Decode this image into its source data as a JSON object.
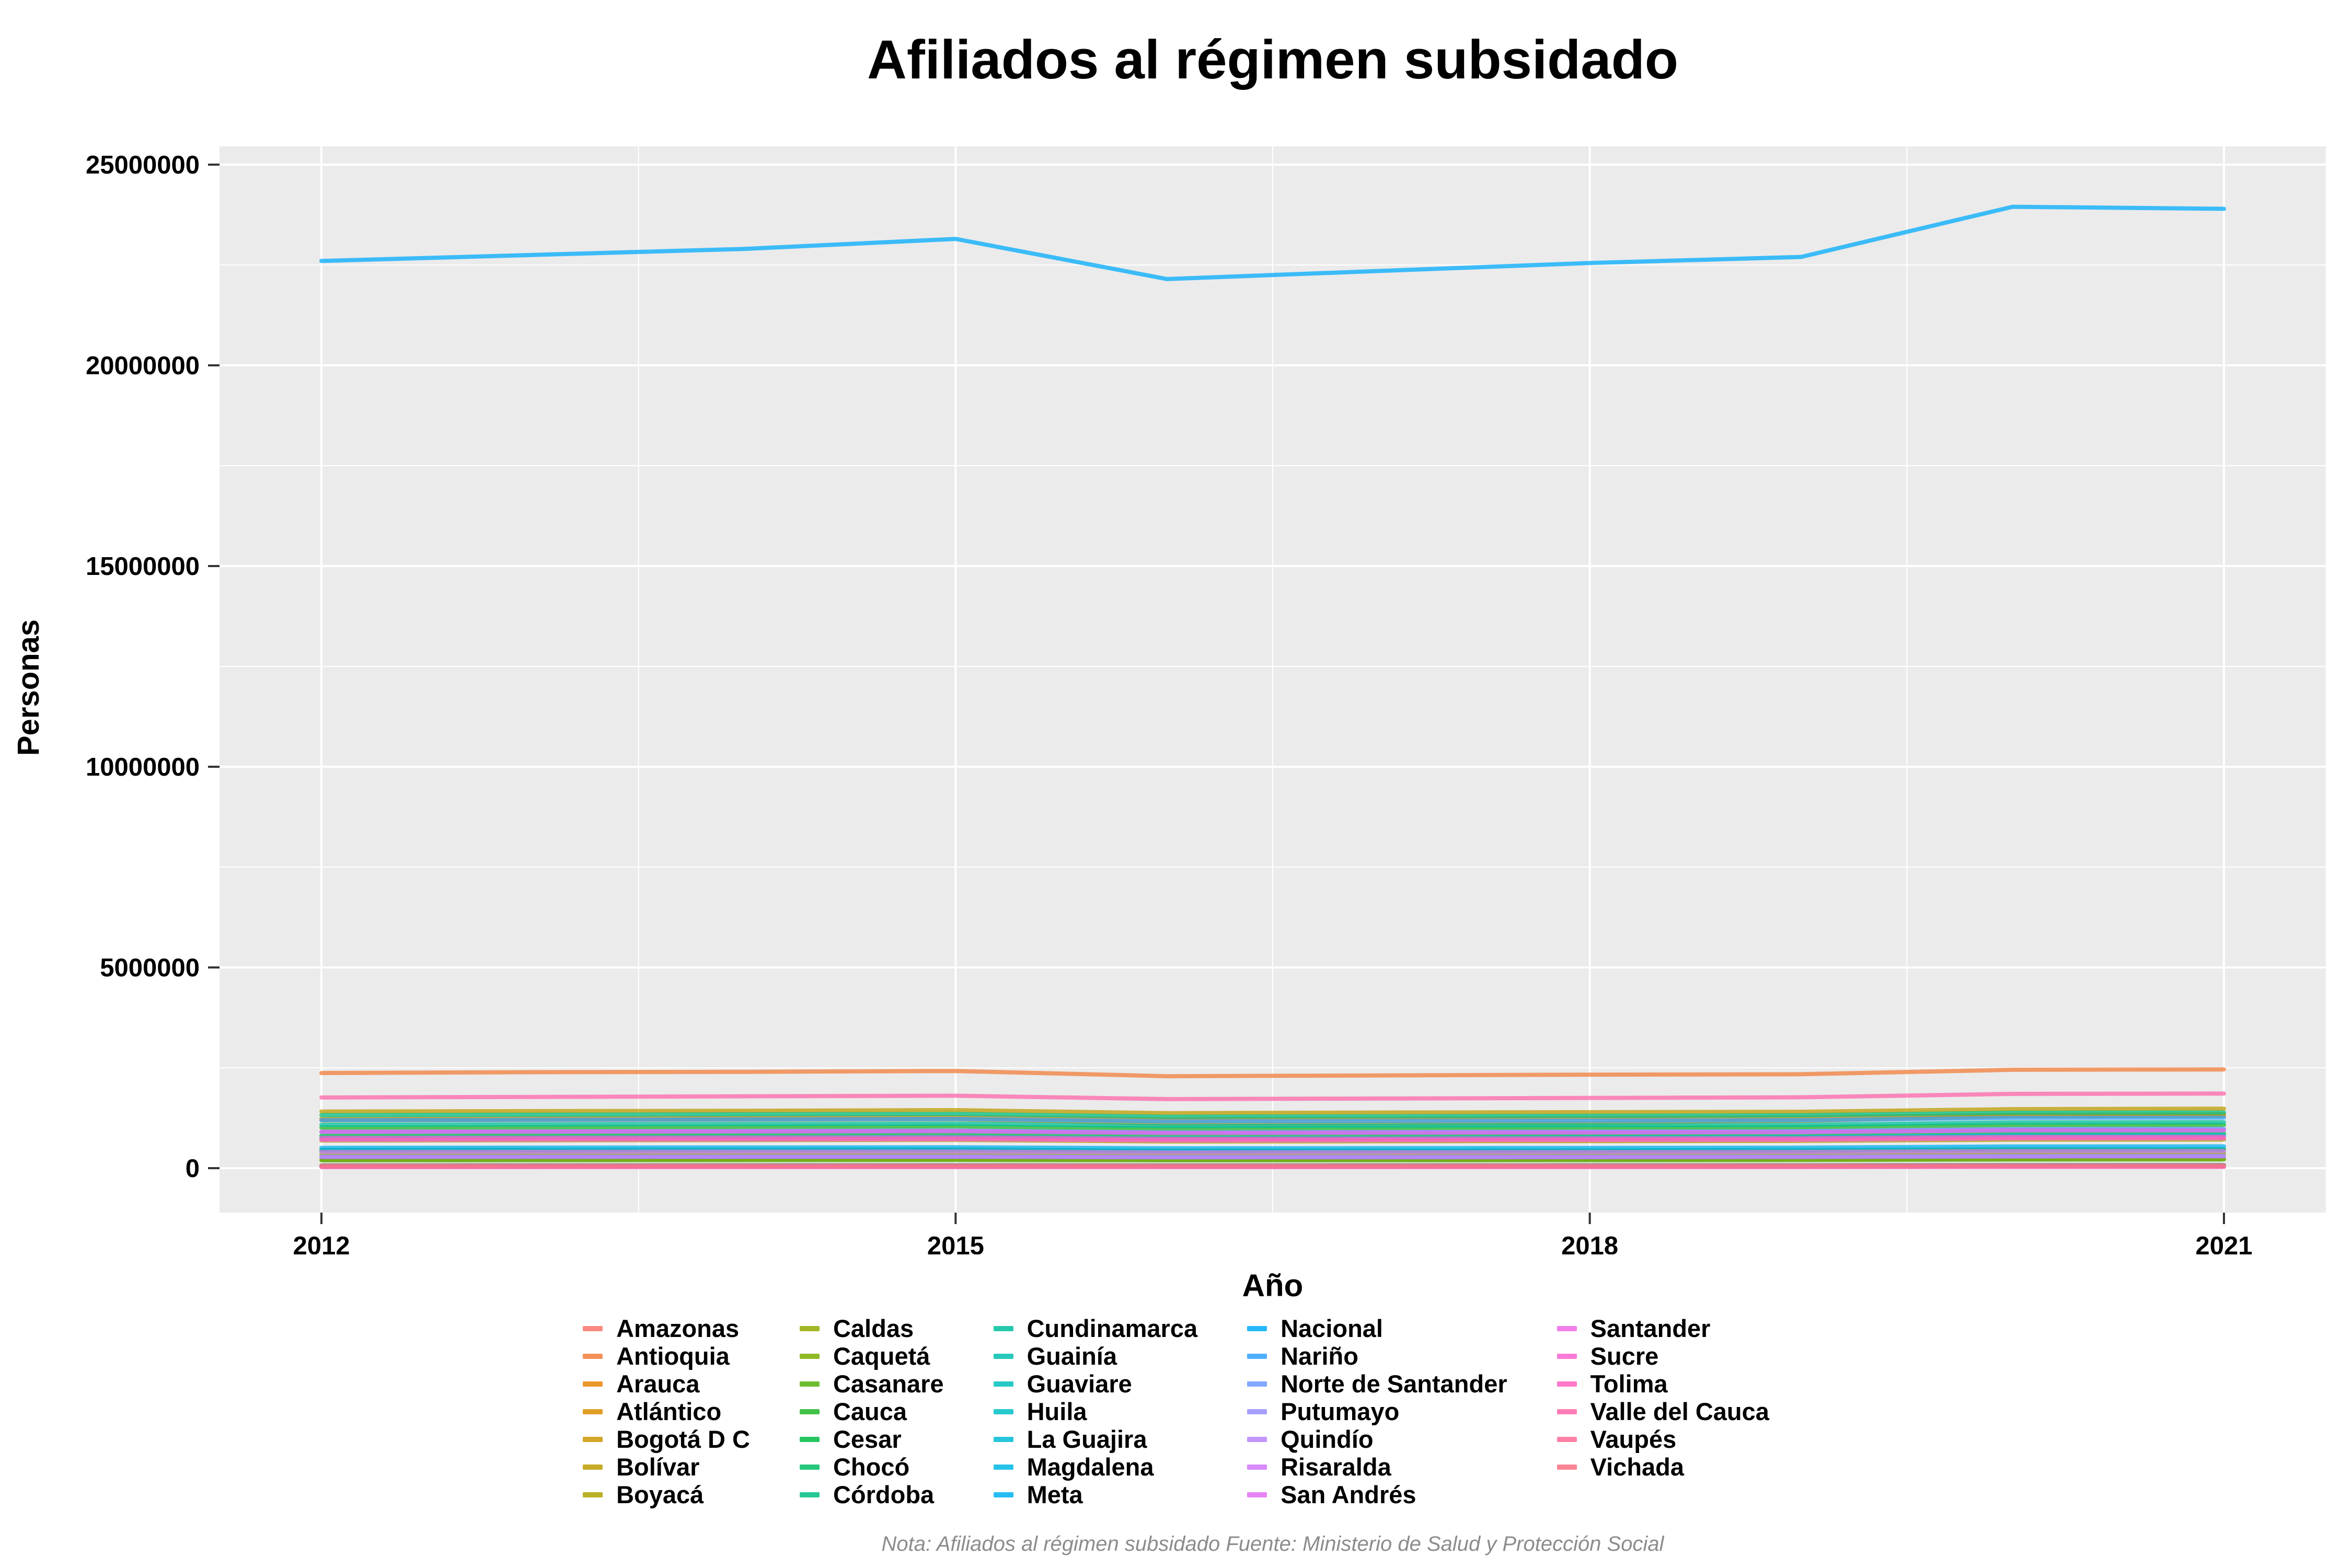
{
  "title": "Afiliados al régimen subsidado",
  "xlabel": "Año",
  "ylabel": "Personas",
  "note": "Nota: Afiliados al régimen subsidado Fuente: Ministerio de Salud y Protección Social",
  "colors": {
    "panel_bg": "#EBEBEB",
    "grid": "#FFFFFF",
    "axis_text": "#000000",
    "tick_mark": "#333333",
    "note_text": "#8C8C8C"
  },
  "chart_data": {
    "type": "line",
    "x": [
      2012,
      2013,
      2014,
      2015,
      2016,
      2017,
      2018,
      2019,
      2020,
      2021
    ],
    "x_ticks": [
      2012,
      2015,
      2018,
      2021
    ],
    "x_minor_ticks": [
      2013.5,
      2016.5,
      2019.5
    ],
    "y_ticks": [
      0,
      5000000,
      10000000,
      15000000,
      20000000,
      25000000
    ],
    "y_minor_ticks": [
      2500000,
      7500000,
      12500000,
      17500000,
      22500000
    ],
    "ylim": [
      0,
      25000000
    ],
    "grid": true,
    "legend_position": "bottom",
    "legend_columns": 5,
    "line_opacity": 0.75,
    "series": [
      {
        "name": "Amazonas",
        "color": "#F8766D",
        "values": [
          62000,
          63000,
          64000,
          65000,
          64000,
          64000,
          65000,
          66000,
          69000,
          70000
        ]
      },
      {
        "name": "Antioquia",
        "color": "#F27E3A",
        "values": [
          2370000,
          2390000,
          2400000,
          2420000,
          2290000,
          2310000,
          2330000,
          2340000,
          2450000,
          2460000
        ]
      },
      {
        "name": "Arauca",
        "color": "#E68605",
        "values": [
          210000,
          213000,
          215000,
          218000,
          210000,
          212000,
          214000,
          216000,
          225000,
          227000
        ]
      },
      {
        "name": "Atlántico",
        "color": "#D98E00",
        "values": [
          1230000,
          1245000,
          1260000,
          1275000,
          1215000,
          1230000,
          1245000,
          1260000,
          1330000,
          1340000
        ]
      },
      {
        "name": "Bogotá D C",
        "color": "#CC9700",
        "values": [
          1190000,
          1200000,
          1210000,
          1220000,
          1105000,
          1115000,
          1125000,
          1180000,
          1290000,
          1300000
        ]
      },
      {
        "name": "Bolívar",
        "color": "#BC9C00",
        "values": [
          1410000,
          1420000,
          1430000,
          1445000,
          1370000,
          1385000,
          1395000,
          1405000,
          1470000,
          1480000
        ]
      },
      {
        "name": "Boyacá",
        "color": "#ABA300",
        "values": [
          690000,
          695000,
          700000,
          705000,
          665000,
          670000,
          675000,
          680000,
          710000,
          712000
        ]
      },
      {
        "name": "Caldas",
        "color": "#93A900",
        "values": [
          455000,
          458000,
          462000,
          465000,
          440000,
          444000,
          448000,
          452000,
          470000,
          472000
        ]
      },
      {
        "name": "Caquetá",
        "color": "#7DAD00",
        "values": [
          340000,
          344000,
          348000,
          352000,
          335000,
          338000,
          342000,
          346000,
          365000,
          368000
        ]
      },
      {
        "name": "Casanare",
        "color": "#51B30D",
        "values": [
          195000,
          198000,
          200000,
          203000,
          195000,
          197000,
          199000,
          202000,
          215000,
          217000
        ]
      },
      {
        "name": "Cauca",
        "color": "#1FB728",
        "values": [
          1010000,
          1020000,
          1030000,
          1040000,
          990000,
          1000000,
          1010000,
          1020000,
          1070000,
          1075000
        ]
      },
      {
        "name": "Cesar",
        "color": "#00BB44",
        "values": [
          810000,
          818000,
          826000,
          834000,
          795000,
          803000,
          811000,
          819000,
          860000,
          865000
        ]
      },
      {
        "name": "Chocó",
        "color": "#00BD65",
        "values": [
          445000,
          448000,
          452000,
          455000,
          430000,
          434000,
          438000,
          442000,
          465000,
          467000
        ]
      },
      {
        "name": "Córdoba",
        "color": "#00BF83",
        "values": [
          1320000,
          1330000,
          1340000,
          1350000,
          1280000,
          1292000,
          1304000,
          1316000,
          1380000,
          1385000
        ]
      },
      {
        "name": "Cundinamarca",
        "color": "#00C09C",
        "values": [
          1080000,
          1090000,
          1100000,
          1110000,
          1050000,
          1060000,
          1070000,
          1080000,
          1140000,
          1145000
        ]
      },
      {
        "name": "Guainía",
        "color": "#00C0B0",
        "values": [
          36000,
          37000,
          37000,
          38000,
          36000,
          37000,
          37000,
          38000,
          41000,
          41000
        ]
      },
      {
        "name": "Guaviare",
        "color": "#00C0BA",
        "values": [
          72000,
          73000,
          74000,
          75000,
          72000,
          73000,
          74000,
          75000,
          80000,
          81000
        ]
      },
      {
        "name": "Huila",
        "color": "#00BFC4",
        "values": [
          760000,
          766000,
          772000,
          778000,
          740000,
          746000,
          752000,
          758000,
          795000,
          798000
        ]
      },
      {
        "name": "La Guajira",
        "color": "#00BCD4",
        "values": [
          745000,
          755000,
          765000,
          775000,
          740000,
          750000,
          760000,
          770000,
          815000,
          820000
        ]
      },
      {
        "name": "Magdalena",
        "color": "#00B8E5",
        "values": [
          905000,
          912000,
          919000,
          926000,
          880000,
          888000,
          896000,
          904000,
          950000,
          955000
        ]
      },
      {
        "name": "Meta",
        "color": "#00B2F1",
        "values": [
          505000,
          510000,
          515000,
          520000,
          495000,
          500000,
          505000,
          510000,
          540000,
          542000
        ]
      },
      {
        "name": "Nacional",
        "color": "#00ABFC",
        "values": [
          22600000,
          22750000,
          22900000,
          23150000,
          22150000,
          22350000,
          22550000,
          22700000,
          23950000,
          23900000
        ]
      },
      {
        "name": "Nariño",
        "color": "#30A1FF",
        "values": [
          1195000,
          1205000,
          1215000,
          1225000,
          1165000,
          1175000,
          1185000,
          1195000,
          1255000,
          1260000
        ]
      },
      {
        "name": "Norte de Santander",
        "color": "#6C98FF",
        "values": [
          905000,
          915000,
          925000,
          935000,
          890000,
          900000,
          910000,
          920000,
          975000,
          980000
        ]
      },
      {
        "name": "Putumayo",
        "color": "#988DFF",
        "values": [
          282000,
          285000,
          288000,
          291000,
          276000,
          279000,
          282000,
          285000,
          300000,
          302000
        ]
      },
      {
        "name": "Quindío",
        "color": "#B782FF",
        "values": [
          278000,
          280000,
          282000,
          284000,
          268000,
          271000,
          274000,
          277000,
          292000,
          294000
        ]
      },
      {
        "name": "Risaralda",
        "color": "#D077FB",
        "values": [
          405000,
          408000,
          411000,
          414000,
          392000,
          396000,
          400000,
          404000,
          425000,
          427000
        ]
      },
      {
        "name": "San Andrés",
        "color": "#E26EF2",
        "values": [
          29000,
          29000,
          30000,
          30000,
          29000,
          29000,
          30000,
          30000,
          32000,
          32000
        ]
      },
      {
        "name": "Santander",
        "color": "#F067E6",
        "values": [
          905000,
          910000,
          915000,
          920000,
          875000,
          882000,
          889000,
          896000,
          940000,
          943000
        ]
      },
      {
        "name": "Sucre",
        "color": "#F963D2",
        "values": [
          705000,
          710000,
          715000,
          720000,
          690000,
          695000,
          700000,
          705000,
          740000,
          742000
        ]
      },
      {
        "name": "Tolima",
        "color": "#FF62BE",
        "values": [
          752000,
          757000,
          762000,
          767000,
          730000,
          736000,
          742000,
          748000,
          780000,
          783000
        ]
      },
      {
        "name": "Valle del Cauca",
        "color": "#FF66AA",
        "values": [
          1760000,
          1775000,
          1790000,
          1805000,
          1720000,
          1735000,
          1750000,
          1765000,
          1850000,
          1858000
        ]
      },
      {
        "name": "Vaupés",
        "color": "#FF6B96",
        "values": [
          30000,
          30000,
          31000,
          31000,
          30000,
          30000,
          31000,
          31000,
          33000,
          33000
        ]
      },
      {
        "name": "Vichada",
        "color": "#FB7081",
        "values": [
          68000,
          69000,
          70000,
          71000,
          68000,
          69000,
          70000,
          71000,
          75000,
          76000
        ]
      }
    ]
  }
}
